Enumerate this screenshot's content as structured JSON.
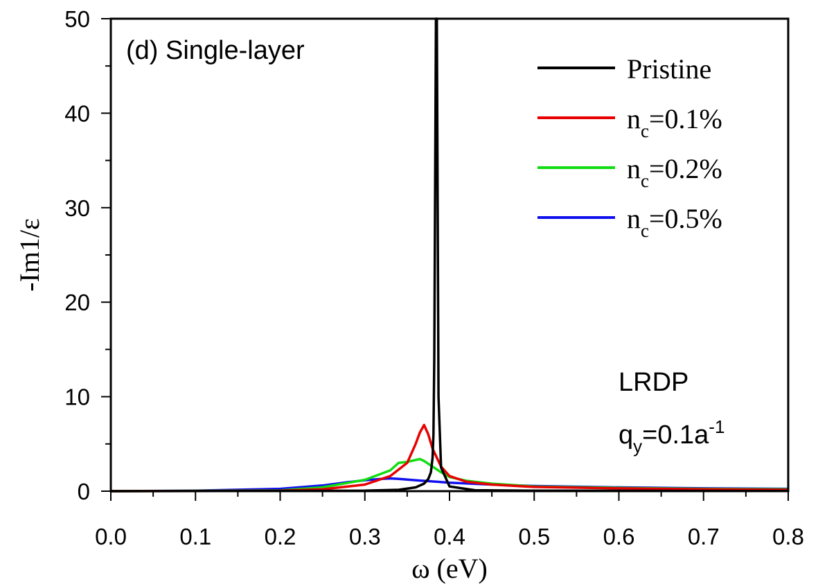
{
  "chart_data": {
    "type": "line",
    "panel_label": "(d) Single-layer",
    "xlabel": "ω (eV)",
    "ylabel": "-Im1/ε",
    "xlim": [
      0.0,
      0.8
    ],
    "ylim": [
      0,
      50
    ],
    "x_ticks": [
      "0.0",
      "0.1",
      "0.2",
      "0.3",
      "0.4",
      "0.5",
      "0.6",
      "0.7",
      "0.8"
    ],
    "y_ticks": [
      "0",
      "10",
      "20",
      "30",
      "40",
      "50"
    ],
    "annotation": {
      "line1": "LRDP",
      "line2_base": "q",
      "line2_sub": "y",
      "line2_mid": "=0.1a",
      "line2_sup": "-1"
    },
    "legend_position": "top-right",
    "series": [
      {
        "name": "Pristine",
        "legend": {
          "base": "Pristine",
          "sub": "",
          "tail": ""
        },
        "color": "#000000",
        "x": [
          0.0,
          0.3,
          0.34,
          0.36,
          0.37,
          0.375,
          0.378,
          0.38,
          0.381,
          0.382,
          0.383,
          0.384,
          0.3845,
          0.385,
          0.386,
          0.387,
          0.39,
          0.4,
          0.43,
          0.5,
          0.8
        ],
        "y": [
          0.0,
          0.05,
          0.15,
          0.4,
          0.8,
          1.3,
          2.0,
          3.5,
          6.0,
          14.0,
          32.0,
          50.0,
          50.0,
          50.0,
          30.0,
          10.0,
          2.5,
          0.5,
          0.1,
          0.05,
          0.02
        ]
      },
      {
        "name": "n_c=0.1%",
        "legend": {
          "base": "n",
          "sub": "c",
          "tail": "=0.1%"
        },
        "color": "#e80000",
        "x": [
          0.0,
          0.2,
          0.25,
          0.3,
          0.33,
          0.35,
          0.36,
          0.365,
          0.37,
          0.375,
          0.38,
          0.39,
          0.4,
          0.42,
          0.45,
          0.5,
          0.6,
          0.7,
          0.8
        ],
        "y": [
          0.0,
          0.05,
          0.2,
          0.7,
          1.6,
          3.0,
          5.0,
          6.2,
          7.0,
          6.0,
          4.5,
          2.6,
          1.6,
          1.0,
          0.7,
          0.45,
          0.3,
          0.2,
          0.15
        ]
      },
      {
        "name": "n_c=0.2%",
        "legend": {
          "base": "n",
          "sub": "c",
          "tail": "=0.2%"
        },
        "color": "#11dd11",
        "x": [
          0.0,
          0.2,
          0.25,
          0.3,
          0.33,
          0.34,
          0.35,
          0.36,
          0.365,
          0.37,
          0.38,
          0.39,
          0.4,
          0.42,
          0.45,
          0.5,
          0.6,
          0.7,
          0.8
        ],
        "y": [
          0.0,
          0.08,
          0.4,
          1.2,
          2.2,
          3.0,
          3.1,
          3.3,
          3.4,
          3.2,
          2.6,
          2.0,
          1.5,
          1.1,
          0.8,
          0.5,
          0.35,
          0.25,
          0.2
        ]
      },
      {
        "name": "n_c=0.5%",
        "legend": {
          "base": "n",
          "sub": "c",
          "tail": "=0.5%"
        },
        "color": "#1010ee",
        "x": [
          0.0,
          0.1,
          0.2,
          0.25,
          0.28,
          0.3,
          0.32,
          0.33,
          0.34,
          0.36,
          0.4,
          0.45,
          0.5,
          0.6,
          0.7,
          0.8
        ],
        "y": [
          0.0,
          0.05,
          0.25,
          0.6,
          0.95,
          1.15,
          1.3,
          1.35,
          1.3,
          1.15,
          0.9,
          0.7,
          0.55,
          0.4,
          0.3,
          0.25
        ]
      }
    ]
  }
}
